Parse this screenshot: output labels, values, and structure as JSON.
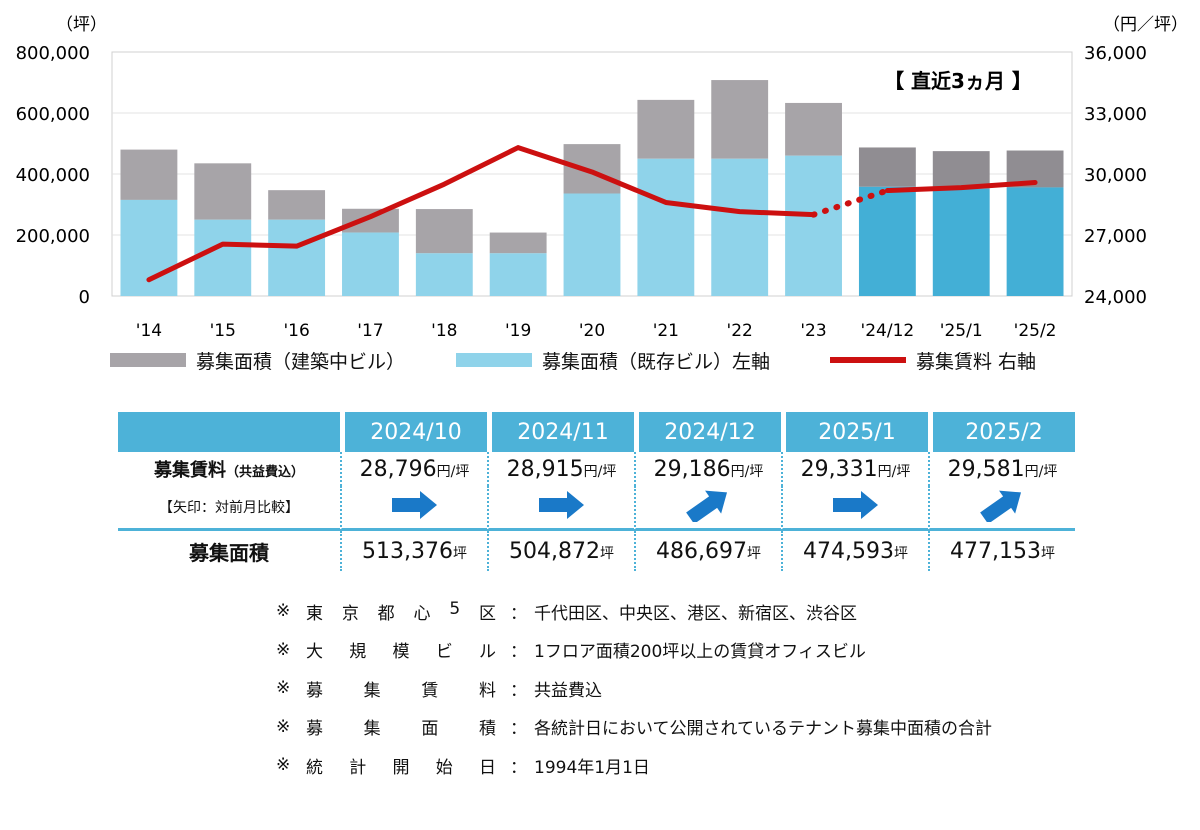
{
  "chart_data": {
    "type": "bar+line",
    "title": "",
    "annotation": "【 直近3ヵ月 】",
    "left_axis": {
      "unit_label": "（坪）",
      "ticks": [
        "800,000",
        "600,000",
        "400,000",
        "200,000",
        "0"
      ],
      "range": [
        0,
        800000
      ]
    },
    "right_axis": {
      "unit_label": "（円／坪）",
      "ticks": [
        "36,000",
        "33,000",
        "30,000",
        "27,000",
        "24,000"
      ],
      "range": [
        24000,
        36000
      ]
    },
    "categories": [
      "'14",
      "'15",
      "'16",
      "'17",
      "'18",
      "'19",
      "'20",
      "'21",
      "'22",
      "'23",
      "'24/12",
      "'25/1",
      "'25/2"
    ],
    "series": [
      {
        "name": "募集面積（既存ビル）",
        "axis": "left",
        "type": "stacked-bar",
        "color": "#8fd3ea",
        "recent_color": "#43afd6",
        "values": [
          315000,
          250000,
          250000,
          208000,
          140000,
          140000,
          336000,
          450000,
          450000,
          460000,
          358000,
          352000,
          356000
        ]
      },
      {
        "name": "募集面積（建築中ビル）",
        "axis": "left",
        "type": "stacked-bar",
        "color": "#a7a4a8",
        "recent_color": "#908d92",
        "values": [
          165000,
          185000,
          97000,
          78000,
          145000,
          68000,
          162000,
          193000,
          258000,
          173000,
          129000,
          123000,
          121000
        ]
      },
      {
        "name": "募集賃料",
        "axis": "right",
        "type": "line",
        "color": "#cc1010",
        "values": [
          24800,
          26550,
          26450,
          27900,
          29500,
          31300,
          30100,
          28600,
          28150,
          28000,
          29186,
          29331,
          29581
        ],
        "dotted_from_index": 9
      }
    ],
    "legend": {
      "building": "募集面積（建築中ビル）",
      "existing": "募集面積（既存ビル）左軸",
      "rent": "募集賃料 右軸"
    }
  },
  "table": {
    "months": [
      "2024/10",
      "2024/11",
      "2024/12",
      "2025/1",
      "2025/2"
    ],
    "rent_label": "募集賃料",
    "rent_sub": "（共益費込）",
    "arrow_note": "【矢印：対前月比較】",
    "rents": [
      "28,796",
      "28,915",
      "29,186",
      "29,331",
      "29,581"
    ],
    "rent_unit": "円/坪",
    "arrows": [
      "flat",
      "flat",
      "up",
      "flat",
      "up"
    ],
    "arrow_color": "#1a79c8",
    "area_label": "募集面積",
    "areas": [
      "513,376",
      "504,872",
      "486,697",
      "474,593",
      "477,153"
    ],
    "area_unit": "坪"
  },
  "notes": [
    {
      "mark": "※",
      "term": [
        "東",
        "京",
        "都",
        "心",
        "5",
        "区"
      ],
      "sep": "：",
      "desc": "千代田区、中央区、港区、新宿区、渋谷区"
    },
    {
      "mark": "※",
      "term": [
        "大",
        "規",
        "模",
        "ビ",
        "ル"
      ],
      "sep": "：",
      "desc": "1フロア面積200坪以上の賃貸オフィスビル"
    },
    {
      "mark": "※",
      "term": [
        "募",
        "集",
        "賃",
        "料"
      ],
      "sep": "：",
      "desc": "共益費込"
    },
    {
      "mark": "※",
      "term": [
        "募",
        "集",
        "面",
        "積"
      ],
      "sep": "：",
      "desc": "各統計日において公開されているテナント募集中面積の合計"
    },
    {
      "mark": "※",
      "term": [
        "統",
        "計",
        "開",
        "始",
        "日"
      ],
      "sep": "：",
      "desc": "1994年1月1日"
    }
  ]
}
